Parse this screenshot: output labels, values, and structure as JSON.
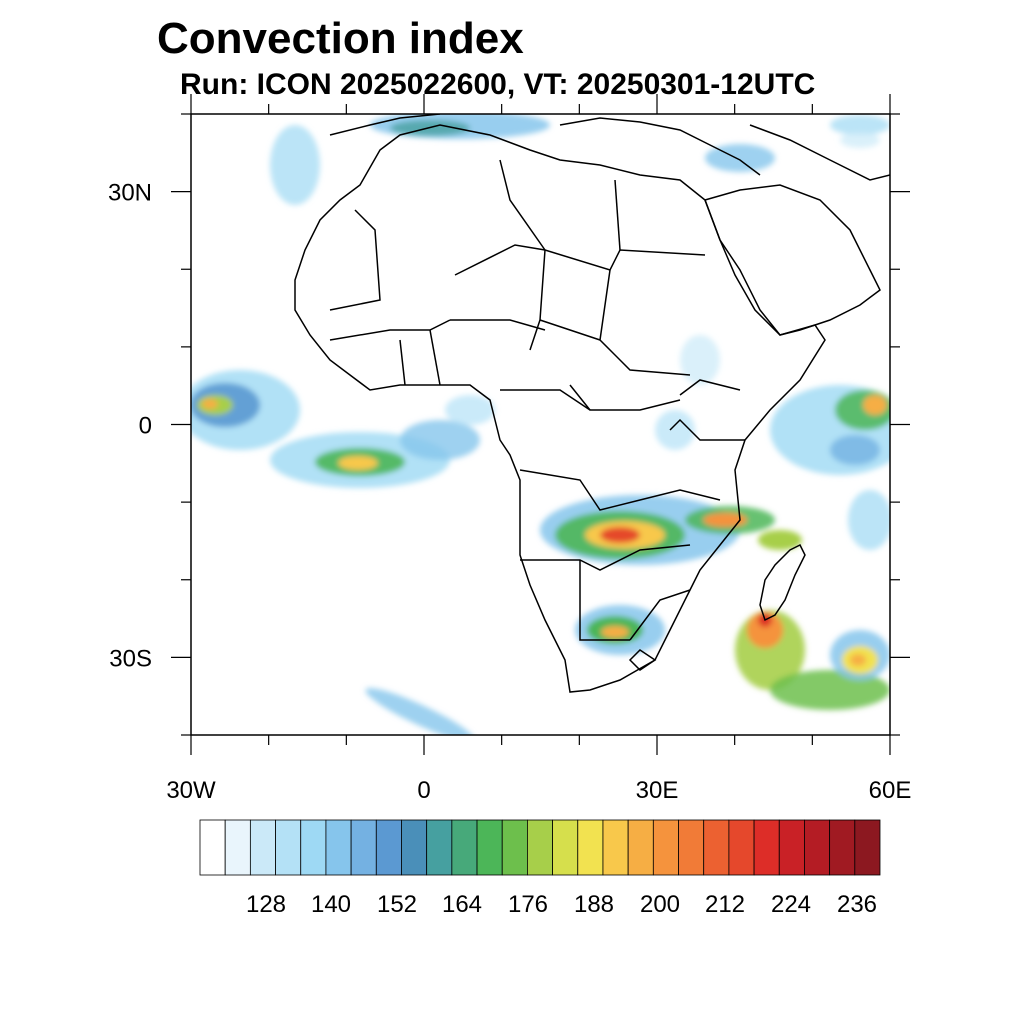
{
  "title": "Convection index",
  "subtitle": "Run: ICON 2025022600,  VT: 20250301-12UTC",
  "map": {
    "lon_range": [
      -30,
      60
    ],
    "lat_range": [
      -40,
      40
    ],
    "x_ticks": [
      {
        "value": -30,
        "label": "30W"
      },
      {
        "value": 0,
        "label": "0"
      },
      {
        "value": 30,
        "label": "30E"
      },
      {
        "value": 60,
        "label": "60E"
      }
    ],
    "y_ticks": [
      {
        "value": 30,
        "label": "30N"
      },
      {
        "value": 0,
        "label": "0"
      },
      {
        "value": -30,
        "label": "30S"
      }
    ]
  },
  "colorbar": {
    "labels": [
      "128",
      "140",
      "152",
      "164",
      "176",
      "188",
      "200",
      "212",
      "224",
      "236"
    ],
    "colors": [
      "#ffffff",
      "#e9f5fc",
      "#cbe9f8",
      "#b4e1f6",
      "#9ed9f4",
      "#86c5ec",
      "#74b1e2",
      "#5b99d2",
      "#4a8fb9",
      "#46a0a0",
      "#47a97a",
      "#4cb658",
      "#6dbf4c",
      "#a7cf4a",
      "#d6df4c",
      "#f2e250",
      "#f8c84b",
      "#f6ae44",
      "#f5933d",
      "#f17b37",
      "#ec6131",
      "#e5482c",
      "#dd2d28",
      "#c92126",
      "#b41c24",
      "#a01a22",
      "#8c1820"
    ]
  },
  "chart_data": {
    "type": "heatmap",
    "title": "Convection index",
    "subtitle": "Run: ICON 2025022600,  VT: 20250301-12UTC",
    "x_range": [
      -30,
      60
    ],
    "y_range": [
      -40,
      40
    ],
    "colorbar_ticks": [
      128,
      140,
      152,
      164,
      176,
      188,
      200,
      212,
      224,
      236
    ]
  }
}
